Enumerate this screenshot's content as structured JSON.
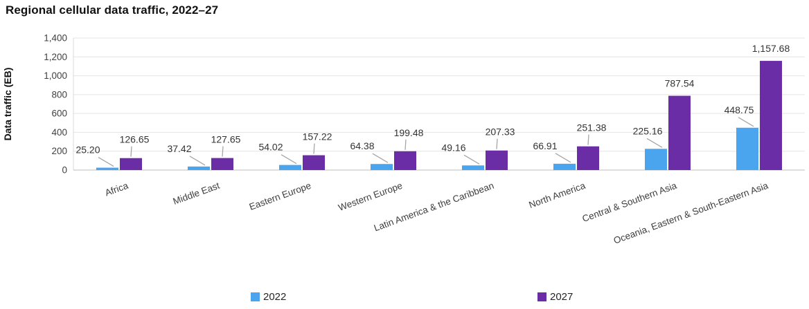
{
  "title": "Regional cellular data traffic, 2022–27",
  "chart_data": {
    "type": "bar",
    "title": "Regional cellular data traffic, 2022–27",
    "xlabel": "",
    "ylabel": "Data traffic (EB)",
    "ylim": [
      0,
      1400
    ],
    "ytick_step": 200,
    "ytick_labels": [
      "0",
      "200",
      "400",
      "600",
      "800",
      "1,000",
      "1,200",
      "1,400"
    ],
    "grid": "horizontal",
    "legend_position": "bottom",
    "value_label_format": "two-decimals-with-thousands-comma",
    "categories": [
      "Africa",
      "Middle East",
      "Eastern Europe",
      "Western Europe",
      "Latin America & the Caribbean",
      "North America",
      "Central & Southern Asia",
      "Oceania, Eastern & South-Eastern Asia"
    ],
    "series": [
      {
        "name": "2022",
        "color": "#4BA4EE",
        "values": [
          25.2,
          37.42,
          54.02,
          64.38,
          49.16,
          66.91,
          225.16,
          448.75
        ],
        "labels": [
          "25.20",
          "37.42",
          "54.02",
          "64.38",
          "49.16",
          "66.91",
          "225.16",
          "448.75"
        ]
      },
      {
        "name": "2027",
        "color": "#6B2DA6",
        "values": [
          126.65,
          127.65,
          157.22,
          199.48,
          207.33,
          251.38,
          787.54,
          1157.68
        ],
        "labels": [
          "126.65",
          "127.65",
          "157.22",
          "199.48",
          "207.33",
          "251.38",
          "787.54",
          "1,157.68"
        ]
      }
    ],
    "style_colors": {
      "gridline": "#E4E4E4",
      "axis_baseline": "#C9C9C9",
      "axis_left_line": "#D9D9D9",
      "leader_line": "#A6A6A6",
      "tick_text": "#404040",
      "data_label_text": "#333333",
      "title_text": "#111111"
    }
  }
}
